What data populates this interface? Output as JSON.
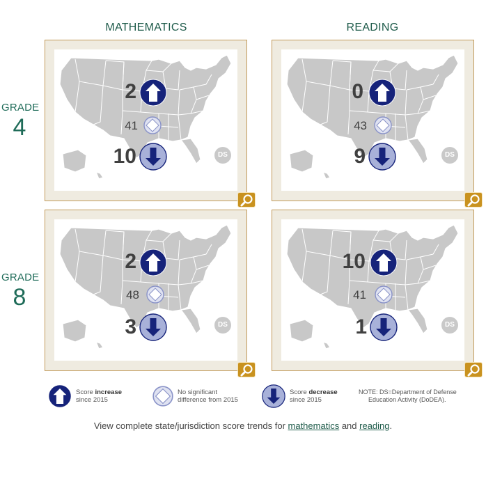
{
  "headers": {
    "mathematics": "MATHEMATICS",
    "reading": "READING"
  },
  "grades": {
    "word": "GRADE",
    "g4": "4",
    "g8": "8"
  },
  "panels": {
    "g4_math": {
      "increase": "2",
      "no_change": "41",
      "decrease": "10",
      "ds": "DS"
    },
    "g4_reading": {
      "increase": "0",
      "no_change": "43",
      "decrease": "9",
      "ds": "DS"
    },
    "g8_math": {
      "increase": "2",
      "no_change": "48",
      "decrease": "3",
      "ds": "DS"
    },
    "g8_reading": {
      "increase": "10",
      "no_change": "41",
      "decrease": "1",
      "ds": "DS"
    }
  },
  "legend": {
    "increase_pre": "Score ",
    "increase_bold": "increase",
    "increase_since": "since 2015",
    "nochange_line1": "No significant",
    "nochange_line2": "difference from 2015",
    "decrease_pre": "Score ",
    "decrease_bold": "decrease",
    "decrease_since": "since 2015",
    "note_line1": "NOTE: DS=Department of Defense",
    "note_line2": "Education Activity (DoDEA)."
  },
  "footer": {
    "prefix": "View complete state/jurisdiction score trends for ",
    "math_link": "mathematics",
    "middle": " and ",
    "reading_link": "reading",
    "suffix": "."
  },
  "colors": {
    "increase_fill": "#16237a",
    "decrease_fill": "#a8b1d9",
    "nochange_stroke": "#8a93c8",
    "panel_border": "#c29a5a",
    "zoom_button": "#c9921f",
    "heading": "#1e5b4a"
  },
  "icons": {
    "increase": "up-arrow-circle-icon",
    "no_change": "diamond-icon",
    "decrease": "down-arrow-circle-icon",
    "zoom": "magnifier-icon"
  }
}
